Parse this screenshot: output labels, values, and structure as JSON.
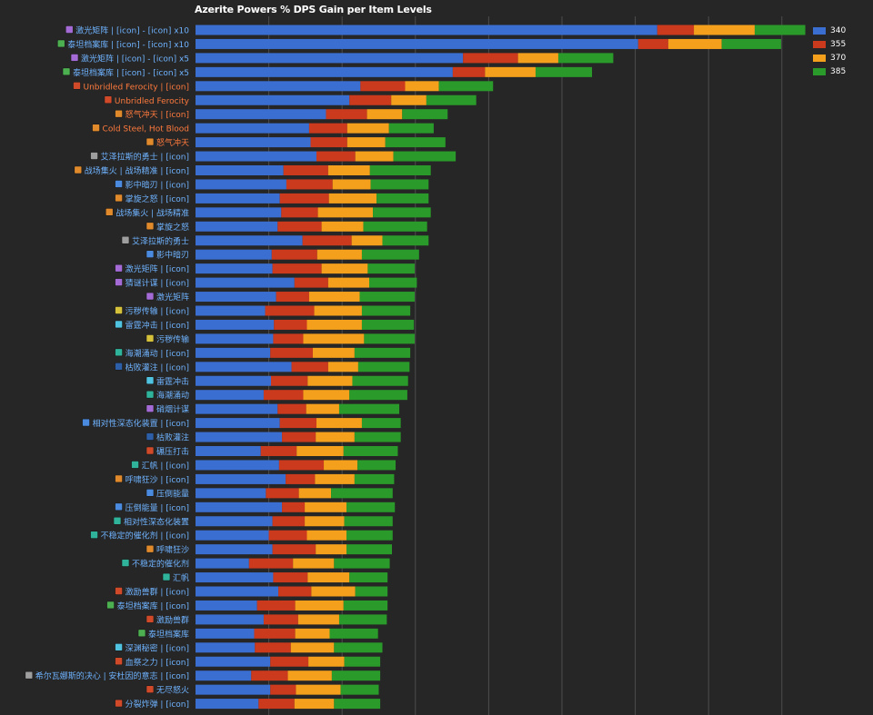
{
  "colors": {
    "background": "#262626",
    "grid": "#4d4d4d",
    "label_blue": "#6fb3ff",
    "label_orange": "#ff7a3d",
    "series": [
      "#3a6fd1",
      "#cc3a1e",
      "#f4a01d",
      "#2a9a2a"
    ]
  },
  "chart_data": {
    "type": "bar",
    "orientation": "horizontal",
    "stacked": true,
    "title": "Azerite Powers % DPS Gain per Item Levels",
    "xlim": [
      0,
      8.4
    ],
    "grid": true,
    "legend_position": "top-right",
    "series_names": [
      "340",
      "355",
      "370",
      "385"
    ],
    "categories": [
      {
        "label": "激光矩阵 | [icon] - [icon] x10",
        "tone": "blue",
        "icon": "purple",
        "values": [
          6.3,
          0.5,
          0.83,
          0.69
        ]
      },
      {
        "label": "泰坦档案库 | [icon] - [icon] x10",
        "tone": "blue",
        "icon": "green",
        "values": [
          6.04,
          0.41,
          0.73,
          0.81
        ]
      },
      {
        "label": "激光矩阵 | [icon] - [icon] x5",
        "tone": "blue",
        "icon": "purple",
        "values": [
          3.65,
          0.75,
          0.55,
          0.75
        ]
      },
      {
        "label": "泰坦档案库 | [icon] - [icon] x5",
        "tone": "blue",
        "icon": "green",
        "values": [
          3.51,
          0.44,
          0.69,
          0.77
        ]
      },
      {
        "label": "Unbridled Ferocity | [icon]",
        "tone": "orange",
        "icon": "red",
        "values": [
          2.25,
          0.61,
          0.46,
          0.74
        ]
      },
      {
        "label": "Unbridled Ferocity",
        "tone": "orange",
        "icon": "red",
        "values": [
          2.1,
          0.57,
          0.48,
          0.68
        ]
      },
      {
        "label": "怒气冲天 | [icon]",
        "tone": "orange",
        "icon": "orange",
        "values": [
          1.78,
          0.56,
          0.48,
          0.62
        ]
      },
      {
        "label": "Cold Steel, Hot Blood",
        "tone": "orange",
        "icon": "orange",
        "values": [
          1.55,
          0.52,
          0.57,
          0.61
        ]
      },
      {
        "label": "怒气冲天",
        "tone": "orange",
        "icon": "orange",
        "values": [
          1.57,
          0.5,
          0.52,
          0.82
        ]
      },
      {
        "label": "艾泽拉斯的勇士 | [icon]",
        "tone": "blue",
        "icon": "grey",
        "values": [
          1.65,
          0.53,
          0.52,
          0.85
        ]
      },
      {
        "label": "战场集火 | 战场精准 | [icon]",
        "tone": "blue",
        "icon": "orange",
        "values": [
          1.2,
          0.61,
          0.57,
          0.83
        ]
      },
      {
        "label": "影中暗刃 | [icon]",
        "tone": "blue",
        "icon": "blue",
        "values": [
          1.24,
          0.63,
          0.52,
          0.79
        ]
      },
      {
        "label": "掌旋之怒 | [icon]",
        "tone": "blue",
        "icon": "orange",
        "values": [
          1.15,
          0.67,
          0.65,
          0.71
        ]
      },
      {
        "label": "战场集火 | 战场精准",
        "tone": "blue",
        "icon": "orange",
        "values": [
          1.17,
          0.5,
          0.75,
          0.79
        ]
      },
      {
        "label": "掌旋之怒",
        "tone": "blue",
        "icon": "orange",
        "values": [
          1.12,
          0.6,
          0.57,
          0.87
        ]
      },
      {
        "label": "艾泽拉斯的勇士",
        "tone": "blue",
        "icon": "grey",
        "values": [
          1.46,
          0.67,
          0.42,
          0.63
        ]
      },
      {
        "label": "影中暗刃",
        "tone": "blue",
        "icon": "blue",
        "values": [
          1.04,
          0.62,
          0.61,
          0.78
        ]
      },
      {
        "label": "激光矩阵 | [icon]",
        "tone": "blue",
        "icon": "purple",
        "values": [
          1.05,
          0.67,
          0.63,
          0.64
        ]
      },
      {
        "label": "猜谜计谋 | [icon]",
        "tone": "blue",
        "icon": "purple",
        "values": [
          1.35,
          0.46,
          0.56,
          0.65
        ]
      },
      {
        "label": "激光矩阵",
        "tone": "blue",
        "icon": "purple",
        "values": [
          1.1,
          0.45,
          0.69,
          0.75
        ]
      },
      {
        "label": "污秽传输 | [icon]",
        "tone": "blue",
        "icon": "yellow",
        "values": [
          0.95,
          0.67,
          0.65,
          0.66
        ]
      },
      {
        "label": "雷霆冲击 | [icon]",
        "tone": "blue",
        "icon": "cyan",
        "values": [
          1.07,
          0.45,
          0.75,
          0.71
        ]
      },
      {
        "label": "污秽传输",
        "tone": "blue",
        "icon": "yellow",
        "values": [
          1.06,
          0.41,
          0.83,
          0.69
        ]
      },
      {
        "label": "海潮涌动 | [icon]",
        "tone": "blue",
        "icon": "teal",
        "values": [
          1.02,
          0.58,
          0.57,
          0.76
        ]
      },
      {
        "label": "枯败灌注 | [icon]",
        "tone": "blue",
        "icon": "darkblue",
        "values": [
          1.31,
          0.5,
          0.41,
          0.7
        ]
      },
      {
        "label": "雷霆冲击",
        "tone": "blue",
        "icon": "cyan",
        "values": [
          1.03,
          0.5,
          0.61,
          0.76
        ]
      },
      {
        "label": "海潮涌动",
        "tone": "blue",
        "icon": "teal",
        "values": [
          0.93,
          0.54,
          0.63,
          0.79
        ]
      },
      {
        "label": "硝烟计谋",
        "tone": "blue",
        "icon": "purple",
        "values": [
          1.12,
          0.39,
          0.45,
          0.82
        ]
      },
      {
        "label": "相对性深态化装置 | [icon]",
        "tone": "blue",
        "icon": "blue",
        "values": [
          1.15,
          0.5,
          0.62,
          0.53
        ]
      },
      {
        "label": "枯败灌注",
        "tone": "blue",
        "icon": "darkblue",
        "values": [
          1.18,
          0.46,
          0.53,
          0.63
        ]
      },
      {
        "label": "碾压打击",
        "tone": "blue",
        "icon": "red",
        "values": [
          0.89,
          0.49,
          0.64,
          0.74
        ]
      },
      {
        "label": "汇帆 | [icon]",
        "tone": "blue",
        "icon": "teal",
        "values": [
          1.14,
          0.61,
          0.46,
          0.52
        ]
      },
      {
        "label": "呼啸狂沙 | [icon]",
        "tone": "blue",
        "icon": "orange",
        "values": [
          1.23,
          0.4,
          0.54,
          0.54
        ]
      },
      {
        "label": "压倒能量",
        "tone": "blue",
        "icon": "blue",
        "values": [
          0.96,
          0.45,
          0.44,
          0.84
        ]
      },
      {
        "label": "压倒能量 | [icon]",
        "tone": "blue",
        "icon": "blue",
        "values": [
          1.18,
          0.31,
          0.57,
          0.66
        ]
      },
      {
        "label": "相对性深态化装置",
        "tone": "blue",
        "icon": "teal",
        "values": [
          1.05,
          0.44,
          0.54,
          0.66
        ]
      },
      {
        "label": "不稳定的催化剂 | [icon]",
        "tone": "blue",
        "icon": "teal",
        "values": [
          1,
          0.52,
          0.54,
          0.63
        ]
      },
      {
        "label": "呼啸狂沙",
        "tone": "blue",
        "icon": "orange",
        "values": [
          1.05,
          0.59,
          0.42,
          0.62
        ]
      },
      {
        "label": "不稳定的催化剂",
        "tone": "blue",
        "icon": "teal",
        "values": [
          0.73,
          0.6,
          0.56,
          0.76
        ]
      },
      {
        "label": "汇帆",
        "tone": "blue",
        "icon": "teal",
        "values": [
          1.06,
          0.47,
          0.57,
          0.52
        ]
      },
      {
        "label": "激励兽群 | [icon]",
        "tone": "blue",
        "icon": "red",
        "values": [
          1.13,
          0.45,
          0.6,
          0.44
        ]
      },
      {
        "label": "泰坦档案库 | [icon]",
        "tone": "blue",
        "icon": "green",
        "values": [
          0.84,
          0.52,
          0.66,
          0.6
        ]
      },
      {
        "label": "激励兽群",
        "tone": "blue",
        "icon": "red",
        "values": [
          0.93,
          0.47,
          0.56,
          0.65
        ]
      },
      {
        "label": "泰坦档案库",
        "tone": "blue",
        "icon": "green",
        "values": [
          0.8,
          0.56,
          0.47,
          0.66
        ]
      },
      {
        "label": "深渊秘密 | [icon]",
        "tone": "blue",
        "icon": "cyan",
        "values": [
          0.81,
          0.49,
          0.59,
          0.66
        ]
      },
      {
        "label": "血祭之力 | [icon]",
        "tone": "blue",
        "icon": "red",
        "values": [
          1.02,
          0.52,
          0.49,
          0.49
        ]
      },
      {
        "label": "希尔瓦娜斯的决心 | 安杜因的意志 | [icon]",
        "tone": "blue",
        "icon": "grey",
        "values": [
          0.76,
          0.5,
          0.6,
          0.66
        ]
      },
      {
        "label": "无尽怒火",
        "tone": "blue",
        "icon": "red",
        "values": [
          1.02,
          0.35,
          0.61,
          0.52
        ]
      },
      {
        "label": "分裂炸弹 | [icon]",
        "tone": "blue",
        "icon": "red",
        "values": [
          0.86,
          0.49,
          0.54,
          0.63
        ]
      }
    ]
  }
}
